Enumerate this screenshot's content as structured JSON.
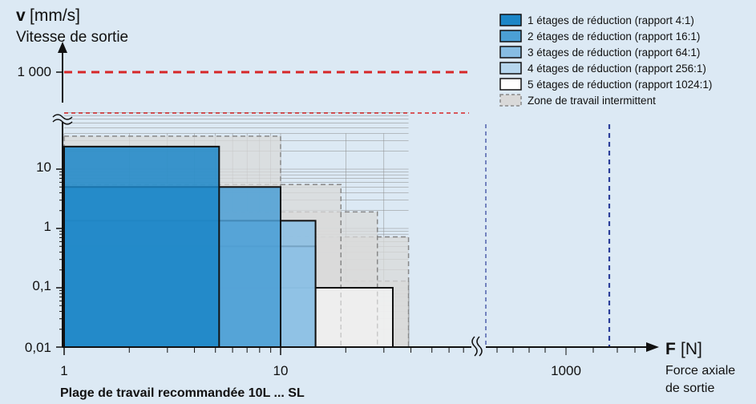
{
  "chart_data": {
    "type": "area",
    "title": "",
    "ylabel_symbol": "v",
    "ylabel_unit": "[mm/s]",
    "ylabel_text": "Vitesse de sortie",
    "xlabel_symbol": "F",
    "xlabel_unit": "[N]",
    "xlabel_text_line1": "Force axiale",
    "xlabel_text_line2": "de sortie",
    "footer": "Plage de travail recommandée 10L ... SL",
    "x_scale": "log (broken axis)",
    "y_scale": "log (broken axis)",
    "x_ticks": [
      "1",
      "10",
      "1000"
    ],
    "y_ticks": [
      "0,01",
      "0,1",
      "1",
      "10",
      "1 000"
    ],
    "legend_position": "top-right",
    "series": [
      {
        "name": "1 étages de réduction (rapport 4:1)",
        "color": "#1b86c7",
        "fmax_N": 5.2,
        "vmax_mm_s": 24,
        "intermittent_fmax_N": 10,
        "intermittent_vmax_mm_s": 36
      },
      {
        "name": "2 étages de réduction (rapport 16:1)",
        "color": "#4b9fd5",
        "fmax_N": 10,
        "vmax_mm_s": 5,
        "intermittent_fmax_N": 19,
        "intermittent_vmax_mm_s": 5.5
      },
      {
        "name": "3 étages de réduction (rapport 64:1)",
        "color": "#87bde3",
        "fmax_N": 14.5,
        "vmax_mm_s": 1.35,
        "intermittent_fmax_N": 28,
        "intermittent_vmax_mm_s": 1.9
      },
      {
        "name": "4 étages de réduction (rapport 256:1)",
        "color": "#b6d6ee",
        "fmax_N": 14.5,
        "vmax_mm_s": 0.5,
        "intermittent_fmax_N": 39,
        "intermittent_vmax_mm_s": 0.72
      },
      {
        "name": "5 étages de réduction (rapport 1024:1)",
        "color": "#ffffff",
        "fmax_N": 33,
        "vmax_mm_s": 0.1,
        "intermittent_fmax_N": 39,
        "intermittent_vmax_mm_s": 0.13
      }
    ],
    "intermittent_legend": "Zone de travail intermittent",
    "intermittent_color": "#d9d9d9",
    "reference_lines": {
      "horizontal_red_mm_s": [
        1000,
        500
      ],
      "vertical_blue_N": [
        500,
        1500
      ]
    }
  }
}
